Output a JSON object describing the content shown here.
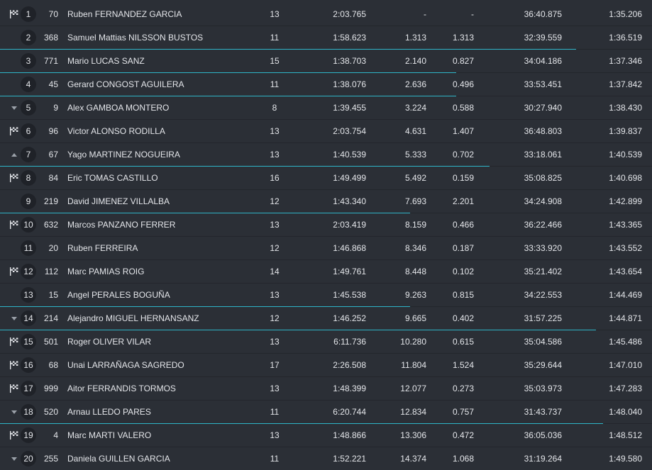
{
  "table": {
    "rows": [
      [
        "1",
        "70",
        "Ruben FERNANDEZ GARCIA",
        "13",
        "2:03.765",
        "-",
        "-",
        "36:40.875",
        "1:35.206"
      ],
      [
        "2",
        "368",
        "Samuel Mattias NILSSON BUSTOS",
        "11",
        "1:58.623",
        "1.313",
        "1.313",
        "32:39.559",
        "1:36.519"
      ],
      [
        "3",
        "771",
        "Mario LUCAS SANZ",
        "15",
        "1:38.703",
        "2.140",
        "0.827",
        "34:04.186",
        "1:37.346"
      ],
      [
        "4",
        "45",
        "Gerard CONGOST AGUILERA",
        "11",
        "1:38.076",
        "2.636",
        "0.496",
        "33:53.451",
        "1:37.842"
      ],
      [
        "5",
        "9",
        "Alex GAMBOA MONTERO",
        "8",
        "1:39.455",
        "3.224",
        "0.588",
        "30:27.940",
        "1:38.430"
      ],
      [
        "6",
        "96",
        "Victor ALONSO RODILLA",
        "13",
        "2:03.754",
        "4.631",
        "1.407",
        "36:48.803",
        "1:39.837"
      ],
      [
        "7",
        "67",
        "Yago MARTINEZ NOGUEIRA",
        "13",
        "1:40.539",
        "5.333",
        "0.702",
        "33:18.061",
        "1:40.539"
      ],
      [
        "8",
        "84",
        "Eric TOMAS CASTILLO",
        "16",
        "1:49.499",
        "5.492",
        "0.159",
        "35:08.825",
        "1:40.698"
      ],
      [
        "9",
        "219",
        "David JIMENEZ VILLALBA",
        "12",
        "1:43.340",
        "7.693",
        "2.201",
        "34:24.908",
        "1:42.899"
      ],
      [
        "10",
        "632",
        "Marcos PANZANO FERRER",
        "13",
        "2:03.419",
        "8.159",
        "0.466",
        "36:22.466",
        "1:43.365"
      ],
      [
        "11",
        "20",
        "Ruben FERREIRA",
        "12",
        "1:46.868",
        "8.346",
        "0.187",
        "33:33.920",
        "1:43.552"
      ],
      [
        "12",
        "112",
        "Marc PAMIAS ROIG",
        "14",
        "1:49.761",
        "8.448",
        "0.102",
        "35:21.402",
        "1:43.654"
      ],
      [
        "13",
        "15",
        "Angel PERALES BOGUÑA",
        "13",
        "1:45.538",
        "9.263",
        "0.815",
        "34:22.553",
        "1:44.469"
      ],
      [
        "14",
        "214",
        "Alejandro MIGUEL HERNANSANZ",
        "12",
        "1:46.252",
        "9.665",
        "0.402",
        "31:57.225",
        "1:44.871"
      ],
      [
        "15",
        "501",
        "Roger OLIVER VILAR",
        "13",
        "6:11.736",
        "10.280",
        "0.615",
        "35:04.586",
        "1:45.486"
      ],
      [
        "16",
        "68",
        "Unai LARRAÑAGA SAGREDO",
        "17",
        "2:26.508",
        "11.804",
        "1.524",
        "35:29.644",
        "1:47.010"
      ],
      [
        "17",
        "999",
        "Aitor FERRANDIS TORMOS",
        "13",
        "1:48.399",
        "12.077",
        "0.273",
        "35:03.973",
        "1:47.283"
      ],
      [
        "18",
        "520",
        "Arnau LLEDO PARES",
        "11",
        "6:20.744",
        "12.834",
        "0.757",
        "31:43.737",
        "1:48.040"
      ],
      [
        "19",
        "4",
        "Marc MARTI VALERO",
        "13",
        "1:48.866",
        "13.306",
        "0.472",
        "36:05.036",
        "1:48.512"
      ],
      [
        "20",
        "255",
        "Daniela GUILLEN GARCIA",
        "11",
        "1:52.221",
        "14.374",
        "1.068",
        "31:19.264",
        "1:49.580"
      ]
    ]
  }
}
